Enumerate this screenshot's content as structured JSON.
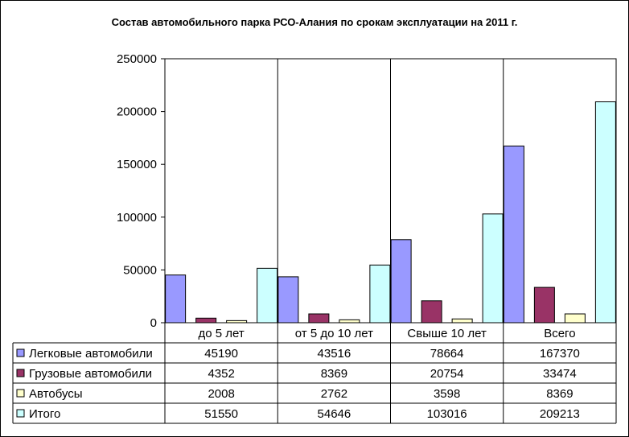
{
  "chart_data": {
    "type": "bar",
    "title": "Состав автомобильного парка РСО-Алания по срокам эксплуатации на  2011 г.",
    "categories": [
      "до 5 лет",
      "от 5 до 10 лет",
      "Свыше 10 лет",
      "Всего"
    ],
    "ylim": [
      0,
      250000
    ],
    "yticks": [
      0,
      50000,
      100000,
      150000,
      200000,
      250000
    ],
    "grid": "vertical lines between categories",
    "legend": "data table below chart",
    "series": [
      {
        "name": "Легковые автомобили",
        "color": "#9999ff",
        "values": [
          45190,
          43516,
          78664,
          167370
        ]
      },
      {
        "name": "Грузовые автомобили",
        "color": "#993366",
        "values": [
          4352,
          8369,
          20754,
          33474
        ]
      },
      {
        "name": "Автобусы",
        "color": "#ffffcc",
        "values": [
          2008,
          2762,
          3598,
          8369
        ]
      },
      {
        "name": "Итого",
        "color": "#ccffff",
        "values": [
          51550,
          54646,
          103016,
          209213
        ]
      }
    ]
  }
}
